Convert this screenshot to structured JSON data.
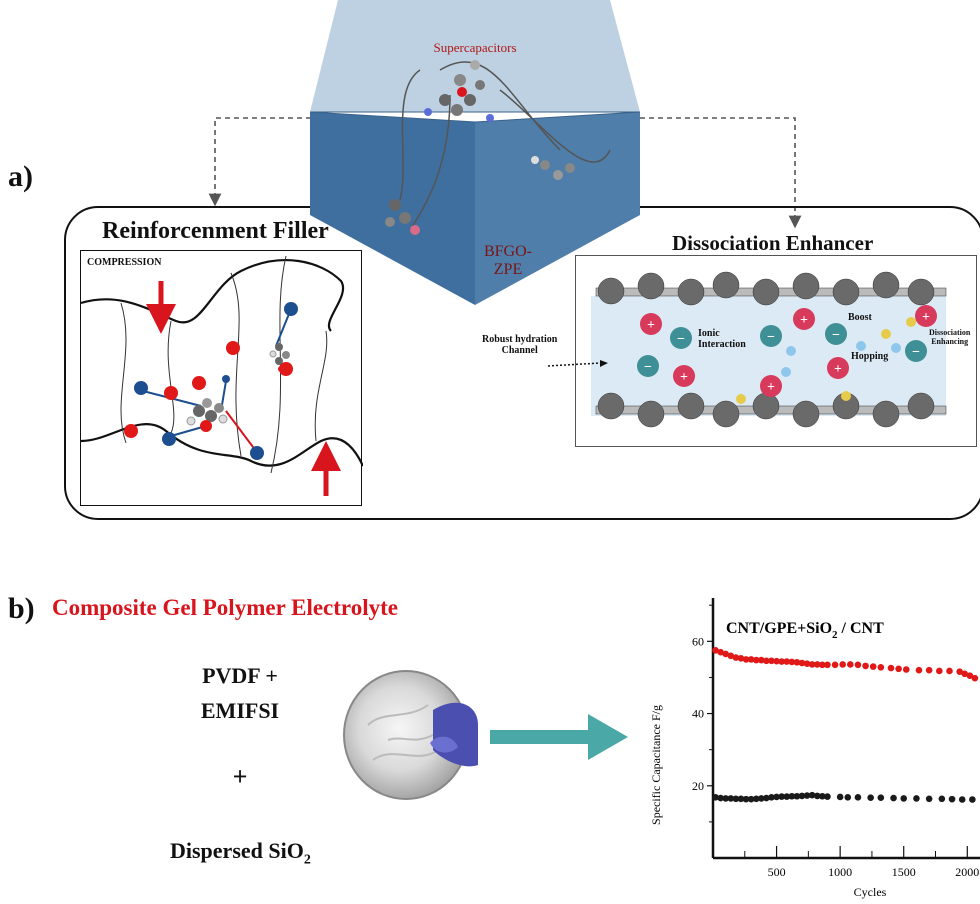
{
  "panel_a": {
    "label": "a)",
    "cube": {
      "top_label": "Supercapacitors",
      "front_label": "BFGO-\nZPE"
    },
    "left_box": {
      "title": "Reinforcenment Filler",
      "inset_label": "COMPRESSION"
    },
    "right_box": {
      "title": "Dissociation Enhancer",
      "callout": "Robust hydration\nChannel",
      "labels": {
        "ionic": "Ionic\nInteraction",
        "boost": "Boost",
        "hopping": "Hopping",
        "dissociation": "Dissociation\nEnhancing"
      }
    }
  },
  "panel_b": {
    "label": "b)",
    "title": "Composite Gel Polymer Electrolyte",
    "ingredient_1": "PVDF +\nEMIFSI",
    "plus": "+",
    "ingredient_2": "Dispersed SiO",
    "ingredient_2_sub": "2"
  },
  "colors": {
    "red": "#d8141c",
    "dark_red": "#8b1a1a",
    "teal": "#4aa8a6",
    "cube_front": "#4f7eaa",
    "cube_top": "#b9cde0"
  },
  "chart_data": {
    "type": "scatter",
    "title": "CNT/GPE+SiO",
    "title_sub": "2",
    "title_suffix": " / CNT",
    "xlabel": "Cycles",
    "ylabel": "Specific Capacitance F/g",
    "xlim": [
      0,
      2100
    ],
    "ylim": [
      0,
      72
    ],
    "x_ticks": [
      500,
      1000,
      1500,
      2000
    ],
    "x_tick_labels": [
      "500",
      "1000",
      "1500",
      "2000"
    ],
    "y_ticks": [
      20,
      40,
      60
    ],
    "y_tick_labels": [
      "20",
      "40",
      "60"
    ],
    "grid": false,
    "series": [
      {
        "color": "#e01818",
        "x": [
          20,
          60,
          100,
          140,
          180,
          220,
          260,
          300,
          340,
          380,
          420,
          460,
          500,
          540,
          580,
          620,
          660,
          700,
          740,
          780,
          820,
          860,
          900,
          960,
          1020,
          1080,
          1140,
          1200,
          1260,
          1320,
          1400,
          1460,
          1520,
          1620,
          1700,
          1780,
          1860,
          1940,
          1980,
          2020,
          2060
        ],
        "y": [
          57.5,
          57,
          56.5,
          56,
          55.5,
          55.3,
          55,
          55,
          54.8,
          54.8,
          54.6,
          54.6,
          54.5,
          54.4,
          54.4,
          54.3,
          54.2,
          54,
          53.8,
          53.6,
          53.6,
          53.5,
          53.5,
          53.5,
          53.6,
          53.6,
          53.5,
          53.2,
          53,
          52.8,
          52.6,
          52.4,
          52.2,
          52,
          52,
          51.8,
          51.8,
          51.6,
          51,
          50.5,
          49.8
        ]
      },
      {
        "color": "#1a1a1a",
        "x": [
          20,
          60,
          100,
          140,
          180,
          220,
          260,
          300,
          340,
          380,
          420,
          460,
          500,
          540,
          580,
          620,
          660,
          700,
          740,
          780,
          820,
          860,
          900,
          1000,
          1060,
          1140,
          1240,
          1320,
          1420,
          1500,
          1600,
          1700,
          1800,
          1880,
          1960,
          2040
        ],
        "y": [
          16.8,
          16.6,
          16.5,
          16.5,
          16.4,
          16.4,
          16.3,
          16.3,
          16.4,
          16.5,
          16.6,
          16.8,
          16.9,
          17,
          17,
          17.1,
          17.1,
          17.2,
          17.3,
          17.4,
          17.2,
          17.1,
          17,
          16.9,
          16.8,
          16.8,
          16.7,
          16.7,
          16.6,
          16.5,
          16.5,
          16.4,
          16.4,
          16.3,
          16.2,
          16.2
        ]
      }
    ]
  }
}
